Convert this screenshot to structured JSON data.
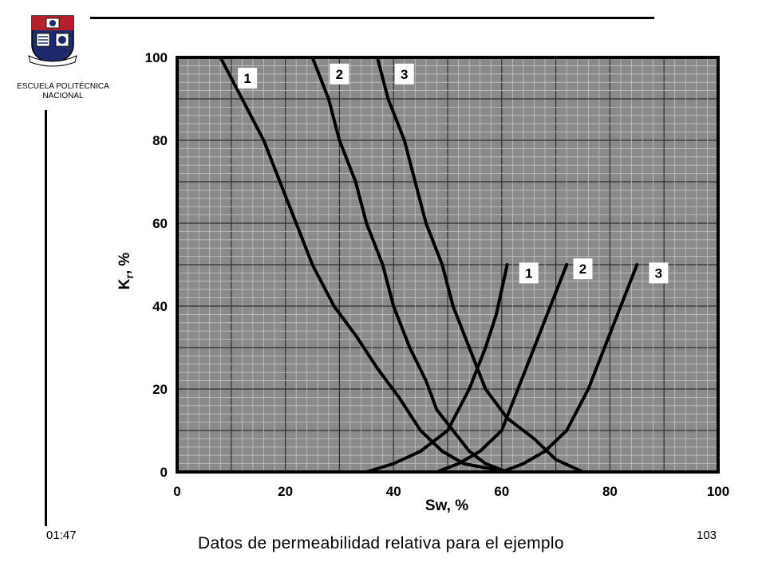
{
  "header": {
    "institution_line1": "ESCUELA POLITÉCNICA",
    "institution_line2": "NACIONAL",
    "logo_icon": "university-crest-icon"
  },
  "footer": {
    "time": "01:47",
    "page_number": "103",
    "caption": "Datos de permeabilidad relativa para el ejemplo"
  },
  "chart_data": {
    "type": "line",
    "title": "",
    "xlabel": "Sw,  %",
    "ylabel_main": "K",
    "ylabel_sub": "r",
    "ylabel_tail": ",   %",
    "xlim": [
      0,
      100
    ],
    "ylim": [
      0,
      100
    ],
    "x_ticks": [
      "0",
      "20",
      "40",
      "60",
      "80",
      "100"
    ],
    "y_ticks": [
      "0",
      "20",
      "40",
      "60",
      "80",
      "100"
    ],
    "grid": true,
    "background_color": "#8a8a8a",
    "line_color": "#000000",
    "series": [
      {
        "name": "1",
        "family": "decreasing",
        "label_at": [
          13,
          95
        ],
        "points": [
          [
            8,
            100
          ],
          [
            12,
            90
          ],
          [
            16,
            80
          ],
          [
            19,
            70
          ],
          [
            22,
            60
          ],
          [
            25,
            50
          ],
          [
            29,
            40
          ],
          [
            33,
            33
          ],
          [
            37,
            25
          ],
          [
            41,
            18
          ],
          [
            45,
            10
          ],
          [
            49,
            5
          ],
          [
            53,
            2
          ],
          [
            57,
            1
          ],
          [
            61,
            0
          ]
        ]
      },
      {
        "name": "2",
        "family": "decreasing",
        "label_at": [
          30,
          96
        ],
        "points": [
          [
            25,
            100
          ],
          [
            28,
            90
          ],
          [
            30,
            80
          ],
          [
            33,
            70
          ],
          [
            35,
            60
          ],
          [
            38,
            50
          ],
          [
            40,
            40
          ],
          [
            43,
            30
          ],
          [
            46,
            22
          ],
          [
            48,
            15
          ],
          [
            51,
            10
          ],
          [
            54,
            5
          ],
          [
            57,
            2
          ],
          [
            61,
            0
          ]
        ]
      },
      {
        "name": "3",
        "family": "decreasing",
        "label_at": [
          42,
          96
        ],
        "points": [
          [
            37,
            100
          ],
          [
            39,
            90
          ],
          [
            42,
            80
          ],
          [
            44,
            70
          ],
          [
            46,
            60
          ],
          [
            49,
            50
          ],
          [
            51,
            40
          ],
          [
            54,
            30
          ],
          [
            57,
            20
          ],
          [
            61,
            13
          ],
          [
            66,
            8
          ],
          [
            70,
            3
          ],
          [
            75,
            0
          ]
        ]
      },
      {
        "name": "1",
        "family": "increasing",
        "label_at": [
          65,
          48
        ],
        "points": [
          [
            35,
            0
          ],
          [
            40,
            2
          ],
          [
            45,
            5
          ],
          [
            50,
            10
          ],
          [
            54,
            20
          ],
          [
            57,
            30
          ],
          [
            59,
            38
          ],
          [
            61,
            50
          ]
        ]
      },
      {
        "name": "2",
        "family": "increasing",
        "label_at": [
          75,
          49
        ],
        "points": [
          [
            48,
            0
          ],
          [
            52,
            2
          ],
          [
            56,
            5
          ],
          [
            60,
            10
          ],
          [
            63,
            20
          ],
          [
            66,
            30
          ],
          [
            69,
            40
          ],
          [
            72,
            50
          ]
        ]
      },
      {
        "name": "3",
        "family": "increasing",
        "label_at": [
          89,
          48
        ],
        "points": [
          [
            60,
            0
          ],
          [
            64,
            2
          ],
          [
            68,
            5
          ],
          [
            72,
            10
          ],
          [
            76,
            20
          ],
          [
            79,
            30
          ],
          [
            82,
            40
          ],
          [
            85,
            50
          ]
        ]
      }
    ]
  }
}
